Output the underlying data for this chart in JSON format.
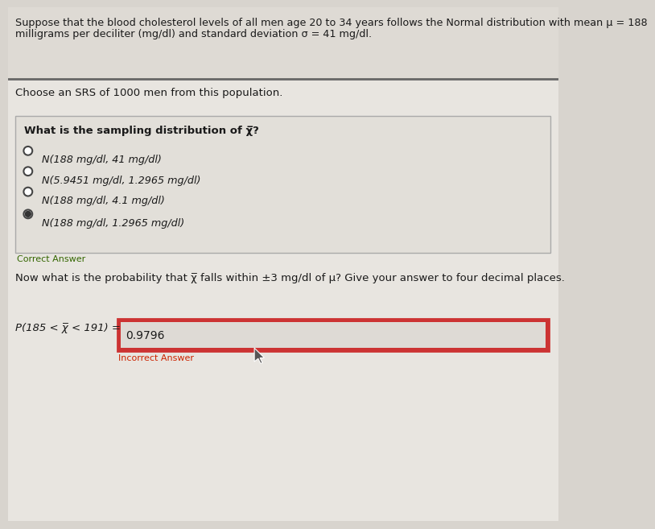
{
  "bg_color": "#d8d4ce",
  "content_bg": "#e8e5e0",
  "top_section_bg": "#dedad4",
  "title_text_line1": "Suppose that the blood cholesterol levels of all men age 20 to 34 years follows the Normal distribution with mean μ = 188",
  "title_text_line2": "milligrams per deciliter (mg/dl) and standard deviation σ = 41 mg/dl.",
  "section2_text": "Choose an SRS of 1000 men from this population.",
  "question_box_text": "What is the sampling distribution of χ̅?",
  "options": [
    "N(188 mg/dl, 41 mg/dl)",
    "N(5.9451 mg/dl, 1.2965 mg/dl)",
    "N(188 mg/dl, 4.1 mg/dl)",
    "N(188 mg/dl, 1.2965 mg/dl)"
  ],
  "selected_option": 3,
  "correct_answer_label": "Correct Answer",
  "prob_question": "Now what is the probability that χ̅ falls within ±3 mg/dl of μ? Give your answer to four decimal places.",
  "prob_label": "P(185 < χ̅ < 191) =",
  "answer_value": "0.9796",
  "incorrect_answer_label": "Incorrect Answer",
  "incorrect_color": "#cc2200",
  "correct_color": "#336600",
  "answer_box_outer_border": "#cc3333",
  "answer_box_inner_bg": "#dedad5",
  "radio_border_color": "#444444",
  "selected_fill_color": "#333333",
  "text_color": "#1a1a1a",
  "divider_color": "#666666",
  "question_box_border": "#aaaaaa",
  "question_box_bg": "#e2dfd9"
}
